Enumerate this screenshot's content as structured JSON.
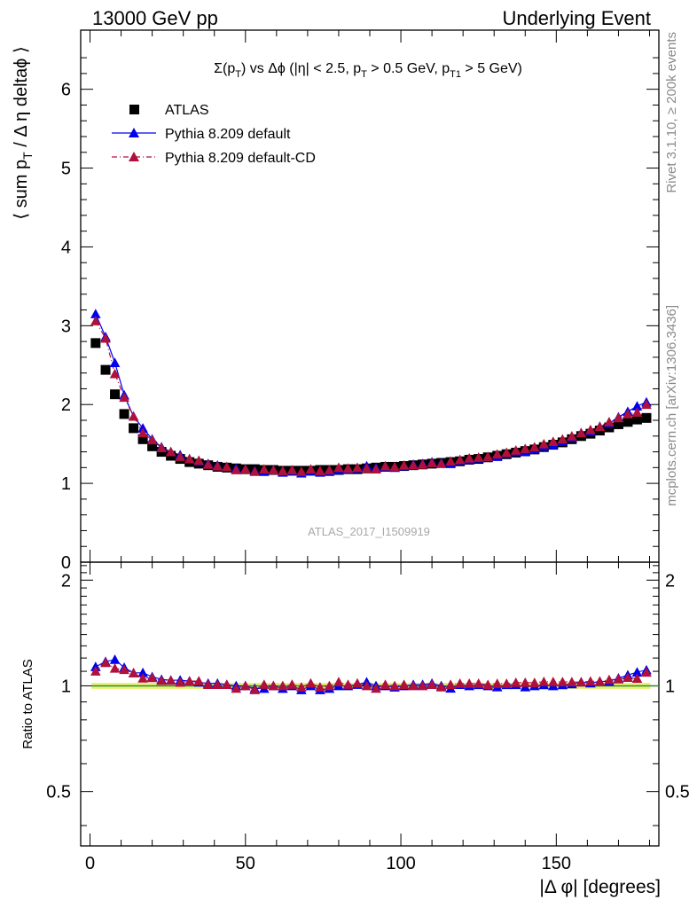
{
  "header": {
    "left": "13000 GeV pp",
    "right": "Underlying Event"
  },
  "side_labels": {
    "rivet": "Rivet 3.1.10, ≥ 200k events",
    "mcplots": "mcplots.cern.ch [arXiv:1306.3436]"
  },
  "watermark": "ATLAS_2017_I1509919",
  "chart_data": [
    {
      "type": "scatter",
      "title": "Σ(pT) vs Δφ (|η| < 2.5, pT > 0.5 GeV, pT1 > 5 GeV)",
      "ylabel": "⟨ sum pT / Δη deltaφ ⟩",
      "xlim": [
        -3,
        183
      ],
      "ylim": [
        0,
        6.75
      ],
      "yticks": [
        "0",
        "1",
        "2",
        "3",
        "4",
        "5",
        "6"
      ],
      "legend_position": "top-left",
      "legend": [
        "ATLAS",
        "Pythia 8.209 default",
        "Pythia 8.209 default-CD"
      ],
      "colors": {
        "ATLAS": "#000000",
        "default": "#0000ee",
        "default_cd": "#b0103c"
      },
      "x": [
        1.8,
        5,
        8,
        11,
        14,
        17,
        20,
        23,
        26,
        29,
        32,
        35,
        38,
        41,
        44,
        47,
        50,
        53,
        56,
        59,
        62,
        65,
        68,
        71,
        74,
        77,
        80,
        83,
        86,
        89,
        92,
        95,
        98,
        101,
        104,
        107,
        110,
        113,
        116,
        119,
        122,
        125,
        128,
        131,
        134,
        137,
        140,
        143,
        146,
        149,
        152,
        155,
        158,
        161,
        164,
        167,
        170,
        173,
        176,
        179
      ],
      "series": [
        {
          "name": "ATLAS",
          "marker": "square",
          "values": [
            2.78,
            2.44,
            2.13,
            1.88,
            1.7,
            1.56,
            1.47,
            1.4,
            1.35,
            1.31,
            1.27,
            1.25,
            1.23,
            1.21,
            1.2,
            1.19,
            1.18,
            1.18,
            1.17,
            1.17,
            1.16,
            1.16,
            1.16,
            1.16,
            1.17,
            1.17,
            1.17,
            1.18,
            1.18,
            1.19,
            1.2,
            1.21,
            1.21,
            1.22,
            1.23,
            1.24,
            1.25,
            1.26,
            1.27,
            1.28,
            1.3,
            1.31,
            1.33,
            1.35,
            1.37,
            1.39,
            1.41,
            1.43,
            1.46,
            1.49,
            1.52,
            1.56,
            1.6,
            1.63,
            1.67,
            1.71,
            1.75,
            1.78,
            1.81,
            1.83
          ]
        },
        {
          "name": "Pythia 8.209 default",
          "marker": "triangle",
          "values": [
            3.15,
            2.86,
            2.53,
            2.12,
            1.85,
            1.7,
            1.56,
            1.46,
            1.4,
            1.36,
            1.31,
            1.28,
            1.25,
            1.23,
            1.21,
            1.19,
            1.18,
            1.16,
            1.15,
            1.17,
            1.14,
            1.16,
            1.13,
            1.16,
            1.14,
            1.15,
            1.17,
            1.18,
            1.19,
            1.22,
            1.2,
            1.21,
            1.2,
            1.22,
            1.24,
            1.25,
            1.27,
            1.26,
            1.25,
            1.29,
            1.3,
            1.32,
            1.33,
            1.34,
            1.38,
            1.4,
            1.4,
            1.43,
            1.47,
            1.49,
            1.53,
            1.58,
            1.64,
            1.66,
            1.72,
            1.76,
            1.84,
            1.91,
            1.98,
            2.03
          ]
        },
        {
          "name": "Pythia 8.209 default-CD",
          "marker": "triangle",
          "values": [
            3.06,
            2.84,
            2.39,
            2.09,
            1.85,
            1.64,
            1.55,
            1.45,
            1.4,
            1.34,
            1.31,
            1.29,
            1.24,
            1.22,
            1.21,
            1.17,
            1.18,
            1.15,
            1.18,
            1.17,
            1.16,
            1.17,
            1.15,
            1.18,
            1.16,
            1.17,
            1.2,
            1.19,
            1.2,
            1.19,
            1.18,
            1.22,
            1.21,
            1.23,
            1.23,
            1.24,
            1.26,
            1.25,
            1.28,
            1.3,
            1.32,
            1.33,
            1.34,
            1.37,
            1.39,
            1.42,
            1.44,
            1.46,
            1.5,
            1.53,
            1.56,
            1.6,
            1.64,
            1.68,
            1.72,
            1.78,
            1.83,
            1.88,
            1.9,
            2.0
          ]
        }
      ]
    },
    {
      "type": "scatter",
      "ylabel": "Ratio to ATLAS",
      "xlabel": "|Δ φ| [degrees]",
      "xlim": [
        -3,
        183
      ],
      "ylim": [
        0.35,
        2.25
      ],
      "yticks": [
        "0.5",
        "1",
        "2"
      ],
      "xticks": [
        "0",
        "50",
        "100",
        "150"
      ],
      "reference": 1.0,
      "band": [
        0.98,
        1.02
      ],
      "colors": {
        "band": "#e9f27a",
        "reference": "#2d8a2d"
      }
    }
  ]
}
